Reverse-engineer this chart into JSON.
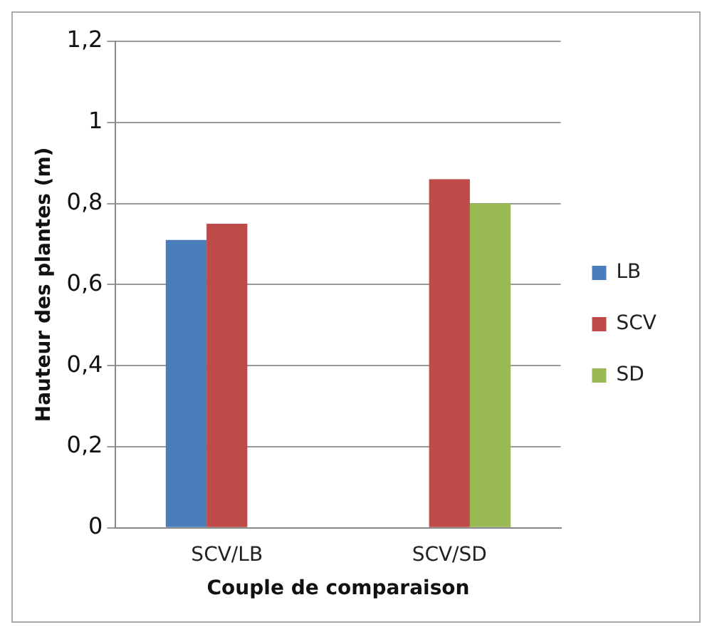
{
  "chart_data": {
    "type": "bar",
    "xlabel": "Couple de comparaison",
    "ylabel": "Hauteur des plantes (m)",
    "categories": [
      "SCV/LB",
      "SCV/SD"
    ],
    "series": [
      {
        "name": "LB",
        "color": "#4a7ebb",
        "values": [
          0.71,
          null
        ]
      },
      {
        "name": "SCV",
        "color": "#be4b48",
        "values": [
          0.75,
          0.86
        ]
      },
      {
        "name": "SD",
        "color": "#98b954",
        "values": [
          null,
          0.8
        ]
      }
    ],
    "ylim": [
      0,
      1.2
    ],
    "yticks": [
      {
        "value": 0,
        "label": "0"
      },
      {
        "value": 0.2,
        "label": "0,2"
      },
      {
        "value": 0.4,
        "label": "0,4"
      },
      {
        "value": 0.6,
        "label": "0,6"
      },
      {
        "value": 0.8,
        "label": "0,8"
      },
      {
        "value": 1,
        "label": "1"
      },
      {
        "value": 1.2,
        "label": "1,2"
      }
    ],
    "grid": "y",
    "legend": "right"
  }
}
